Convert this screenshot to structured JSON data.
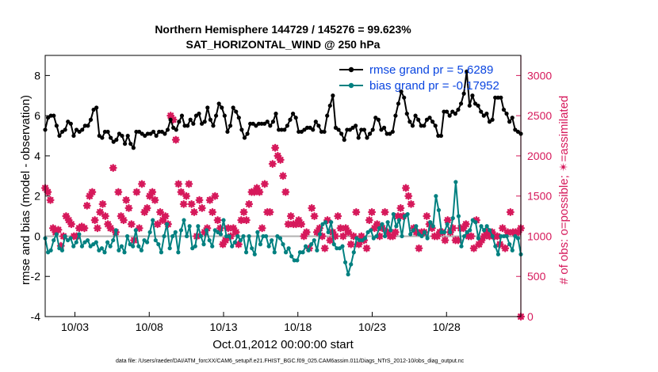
{
  "chart_data": {
    "type": "line",
    "title": "Northern Hemisphere 144729 / 145276 = 99.623%",
    "subtitle": "SAT_HORIZONTAL_WIND @ 250 hPa",
    "xlabel": "Oct.01,2012 00:00:00 start",
    "ylabel_left": "rmse and bias (model - observation)",
    "ylabel_right": "# of obs: o=possible; ✴=assimilated",
    "footer": "data file: /Users/raeder/DAI/ATM_forcXX/CAM6_setup/f.e21.FHIST_BGC.f09_025.CAM6assim.011/Diags_NTrS_2012-10/obs_diag_output.nc",
    "x_ticks": [
      {
        "day": 3,
        "label": "10/03"
      },
      {
        "day": 8,
        "label": "10/08"
      },
      {
        "day": 13,
        "label": "10/13"
      },
      {
        "day": 18,
        "label": "10/18"
      },
      {
        "day": 23,
        "label": "10/23"
      },
      {
        "day": 28,
        "label": "10/28"
      }
    ],
    "xlim": [
      1,
      33
    ],
    "ylim_left": [
      -4,
      9
    ],
    "ylim_right": [
      0,
      3250
    ],
    "yticks_left": [
      "-4",
      "-2",
      "0",
      "2",
      "4",
      "6",
      "8"
    ],
    "yticks_right": [
      "0",
      "500",
      "1000",
      "1500",
      "2000",
      "2500",
      "3000"
    ],
    "grid": false,
    "legend_position": "top-right",
    "colors": {
      "rmse": "#000000",
      "bias": "#008080",
      "obs": "#d6195b",
      "zero": "#b0b0b0",
      "legend_text": "#0a45e0"
    },
    "series": [
      {
        "name": "rmse grand pr = 5.6289",
        "values": [
          5.3,
          5.9,
          6.0,
          6.0,
          5.5,
          5.0,
          5.2,
          5.3,
          5.7,
          5.6,
          5.0,
          5.3,
          5.2,
          5.3,
          5.5,
          5.5,
          5.8,
          6.3,
          6.4,
          5.0,
          4.9,
          5.2,
          5.2,
          4.9,
          4.7,
          4.8,
          5.1,
          5.0,
          4.6,
          5.0,
          4.6,
          4.4,
          5.2,
          5.2,
          5.1,
          5.0,
          5.1,
          5.1,
          5.2,
          5.0,
          5.2,
          5.2,
          5.1,
          5.3,
          5.8,
          5.4,
          5.3,
          5.7,
          6.0,
          5.5,
          5.5,
          5.8,
          5.6,
          6.0,
          6.1,
          5.6,
          5.7,
          6.4,
          5.8,
          5.5,
          6.0,
          6.6,
          6.4,
          6.0,
          5.2,
          5.5,
          6.4,
          6.2,
          5.9,
          5.3,
          4.9,
          5.1,
          5.6,
          5.6,
          5.5,
          5.6,
          5.6,
          5.6,
          5.7,
          5.5,
          5.7,
          6.1,
          5.3,
          5.3,
          5.3,
          5.5,
          5.8,
          6.1,
          5.9,
          5.2,
          5.2,
          5.3,
          5.4,
          5.4,
          5.3,
          5.7,
          5.5,
          5.2,
          5.2,
          6.0,
          6.5,
          7.0,
          5.4,
          5.3,
          5.1,
          4.8,
          5.3,
          5.3,
          5.4,
          5.5,
          4.9,
          5.3,
          5.3,
          4.9,
          5.1,
          5.3,
          5.9,
          5.8,
          5.3,
          5.4,
          5.1,
          5.1,
          5.2,
          6.0,
          6.6,
          7.2,
          6.9,
          6.1,
          5.7,
          5.5,
          6.0,
          5.8,
          5.5,
          5.5,
          5.8,
          5.9,
          5.7,
          5.5,
          5.0,
          5.0,
          6.2,
          6.2,
          6.0,
          6.2,
          6.1,
          6.3,
          6.6,
          7.1,
          8.2,
          6.5,
          7.0,
          6.6,
          6.5,
          6.2,
          6.0,
          6.1,
          5.7,
          5.8,
          6.9,
          6.9,
          6.9,
          6.3,
          6.1,
          5.7,
          5.9,
          5.3,
          5.2,
          5.1
        ]
      },
      {
        "name": "bias grand pr = -0.17952",
        "values": [
          -0.1,
          -0.8,
          -0.7,
          -0.2,
          0.1,
          -0.6,
          -0.7,
          0.0,
          -0.2,
          -0.1,
          -0.5,
          -0.3,
          0.1,
          -0.5,
          -0.3,
          -0.2,
          -0.5,
          -0.4,
          -0.3,
          -0.7,
          -0.6,
          -0.8,
          -0.3,
          -0.5,
          -0.2,
          0.3,
          -0.7,
          -0.5,
          -0.8,
          0.0,
          -0.4,
          -0.5,
          0.3,
          -0.5,
          -0.7,
          -0.2,
          -0.3,
          0.2,
          0.8,
          -0.2,
          -0.4,
          -0.8,
          0.0,
          0.6,
          -0.6,
          0.0,
          0.2,
          -0.8,
          0.3,
          0.8,
          0.0,
          0.5,
          -0.6,
          -0.5,
          0.5,
          0.0,
          -0.4,
          0.3,
          -0.2,
          -0.5,
          0.3,
          0.2,
          0.1,
          0.8,
          0.0,
          0.0,
          -0.5,
          -0.3,
          0.0,
          -0.2,
          0.0,
          -0.8,
          0.0,
          -0.6,
          -0.9,
          0.2,
          -0.4,
          0.0,
          0.0,
          -0.5,
          -0.2,
          -0.8,
          0.0,
          -0.1,
          -0.4,
          -0.8,
          -0.6,
          -1.0,
          -1.2,
          -1.2,
          -0.8,
          -0.8,
          -0.5,
          -0.7,
          -0.4,
          -0.2,
          -0.7,
          0.1,
          0.6,
          0.7,
          0.2,
          0.7,
          -0.4,
          -0.6,
          -0.6,
          -0.5,
          -1.3,
          -1.9,
          -1.4,
          -0.8,
          -0.1,
          -0.2,
          -0.2,
          -0.1,
          0.2,
          0.3,
          -0.1,
          0.0,
          0.4,
          0.6,
          0.0,
          0.7,
          0.3,
          1.1,
          0.5,
          0.8,
          0.0,
          1.0,
          1.1,
          0.1,
          0.3,
          0.5,
          0.1,
          0.0,
          0.2,
          -0.1,
          0.7,
          0.5,
          2.0,
          1.3,
          0.2,
          0.2,
          0.6,
          0.2,
          0.9,
          2.7,
          1.0,
          -0.5,
          0.0,
          0.2,
          0.3,
          0.8,
          0.7,
          -0.1,
          0.5,
          0.3,
          0.5,
          0.3,
          0.0,
          -0.5,
          -0.9,
          0.0,
          0.0,
          0.0,
          -0.4,
          -0.7,
          0.0,
          -0.1,
          -0.9
        ]
      },
      {
        "name": "obs assimilated",
        "values": [
          1600,
          1550,
          1450,
          1100,
          1050,
          1080,
          880,
          1000,
          1250,
          1200,
          1150,
          1000,
          1000,
          1100,
          1120,
          1100,
          1380,
          1500,
          1550,
          1200,
          1100,
          1300,
          1400,
          1250,
          1150,
          1100,
          1850,
          1050,
          1550,
          1250,
          1200,
          1450,
          1350,
          1150,
          950,
          1550,
          1100,
          1650,
          1300,
          1350,
          1500,
          1550,
          1450,
          1150,
          1300,
          1200,
          1250,
          1150,
          2500,
          2450,
          2200,
          1650,
          1550,
          1400,
          1500,
          1650,
          1400,
          1300,
          1000,
          1450,
          1350,
          1050,
          1100,
          1450,
          1300,
          1500,
          1200,
          1100,
          900,
          950,
          1100,
          1000,
          1100,
          1050,
          900,
          1200,
          1300,
          1200,
          1400,
          1550,
          1550,
          1600,
          1550,
          1100,
          1650,
          1300,
          1300,
          1900,
          2100,
          2000,
          1950,
          1750,
          1550,
          1150,
          1250,
          1150,
          1150,
          1200,
          1150,
          1000,
          1050,
          850,
          1350,
          1250,
          1050,
          1100,
          1000,
          850,
          1200,
          950,
          1050,
          1000,
          1250,
          1100,
          1000,
          1100,
          1050,
          900,
          1000,
          1300,
          900,
          1000,
          950,
          850,
          1200,
          1300,
          1100,
          1150,
          1000,
          1100,
          1300,
          1050,
          1000,
          1000,
          1050,
          1250,
          1350,
          1250,
          1600,
          1500,
          1400,
          1100,
          1050,
          850,
          1050,
          1050,
          1250,
          1150,
          1100,
          1000,
          1000,
          1050,
          1050,
          950,
          1200,
          1050,
          1100,
          950,
          950,
          1100,
          1100,
          1150,
          1000,
          1000,
          850,
          1200,
          900,
          950,
          1000,
          1050,
          1000,
          1050,
          1000,
          1000,
          900,
          1100,
          850,
          1050,
          1300,
          1050,
          1050,
          1050,
          1100
        ]
      },
      {
        "name": "obs possible",
        "values": [
          0
        ]
      }
    ]
  }
}
